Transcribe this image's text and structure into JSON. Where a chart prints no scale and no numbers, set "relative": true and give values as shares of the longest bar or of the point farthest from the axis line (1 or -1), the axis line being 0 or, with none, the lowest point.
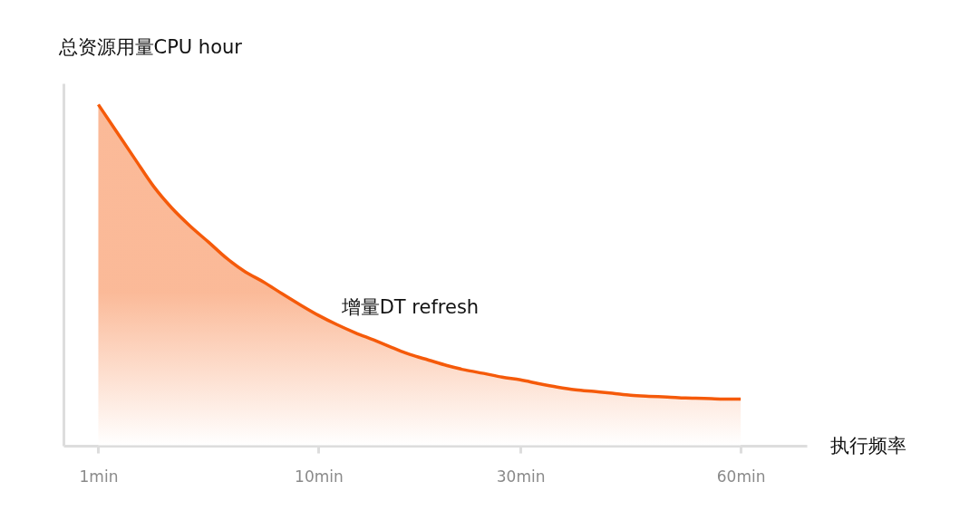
{
  "chart_data": {
    "type": "area",
    "relative": true,
    "ylabel": "总资源用量CPU hour",
    "xlabel": "执行频率",
    "grid": false,
    "categories": [
      "1min",
      null,
      null,
      null,
      null,
      null,
      null,
      null,
      null,
      null,
      null,
      null,
      "10min",
      null,
      null,
      null,
      null,
      null,
      null,
      null,
      null,
      null,
      null,
      "30min",
      null,
      null,
      null,
      null,
      null,
      null,
      null,
      null,
      null,
      null,
      null,
      "60min"
    ],
    "series": [
      {
        "name": "增量DT refresh",
        "color": "#f55a0a",
        "values": [
          1.0,
          0.92,
          0.84,
          0.761,
          0.697,
          0.644,
          0.597,
          0.549,
          0.51,
          0.48,
          0.446,
          0.413,
          0.382,
          0.355,
          0.331,
          0.31,
          0.288,
          0.267,
          0.251,
          0.235,
          0.222,
          0.212,
          0.201,
          0.193,
          0.182,
          0.172,
          0.164,
          0.159,
          0.154,
          0.148,
          0.145,
          0.143,
          0.14,
          0.139,
          0.137,
          0.137
        ]
      }
    ]
  }
}
